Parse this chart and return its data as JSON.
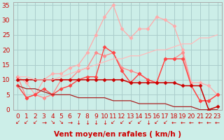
{
  "bg_color": "#cceee8",
  "grid_color": "#aacccc",
  "xlim": [
    -0.5,
    23.5
  ],
  "ylim": [
    0,
    36
  ],
  "yticks": [
    0,
    5,
    10,
    15,
    20,
    25,
    30,
    35
  ],
  "xlabel": "Vent moyen/en rafales ( km/h )",
  "series": [
    {
      "color": "#ffaaaa",
      "lw": 0.9,
      "marker": "D",
      "ms": 2.5,
      "y": [
        11,
        9,
        5,
        10,
        12,
        12,
        14,
        15,
        19,
        25,
        31,
        35,
        27,
        24,
        27,
        27,
        31,
        30,
        28,
        20,
        9,
        9,
        8,
        5
      ]
    },
    {
      "color": "#ff8888",
      "lw": 0.9,
      "marker": "D",
      "ms": 2.5,
      "y": [
        11,
        4,
        5,
        4,
        5,
        10,
        10,
        13,
        14,
        19,
        18,
        19,
        14,
        13,
        12,
        10,
        9,
        17,
        17,
        19,
        8,
        3,
        3,
        5
      ]
    },
    {
      "color": "#ff4444",
      "lw": 1.0,
      "marker": "D",
      "ms": 2.5,
      "y": [
        8,
        4,
        5,
        7,
        5,
        7,
        8,
        10,
        11,
        11,
        21,
        19,
        13,
        9,
        12,
        10,
        9,
        17,
        17,
        17,
        8,
        3,
        3,
        5
      ]
    },
    {
      "color": "#cc0000",
      "lw": 1.1,
      "marker": "D",
      "ms": 2.5,
      "y": [
        10,
        10,
        10,
        10,
        10,
        10,
        10,
        10,
        10,
        10,
        10,
        10,
        10,
        9,
        9,
        9,
        9,
        9,
        9,
        8,
        8,
        8,
        0,
        1
      ]
    },
    {
      "color": "#ffbbbb",
      "lw": 0.9,
      "marker": null,
      "ms": 0,
      "y": [
        11,
        11,
        10,
        10,
        10,
        11,
        12,
        13,
        14,
        15,
        16,
        17,
        17,
        18,
        18,
        19,
        20,
        20,
        21,
        22,
        22,
        24,
        24,
        25
      ]
    },
    {
      "color": "#aa2222",
      "lw": 0.9,
      "marker": null,
      "ms": 0,
      "y": [
        8,
        7,
        7,
        6,
        5,
        5,
        5,
        4,
        4,
        4,
        4,
        3,
        3,
        3,
        2,
        2,
        2,
        2,
        1,
        1,
        1,
        0,
        0,
        0
      ]
    }
  ],
  "wind_arrows": [
    "↙",
    "↙",
    "↙",
    "→",
    "↘",
    "↘",
    "→",
    "↓",
    "↓",
    "↓",
    "↓",
    "↙",
    "↙",
    "↙",
    "↙",
    "↓",
    "↙",
    "↙",
    "←",
    "←",
    "←",
    "←",
    "←",
    "←"
  ],
  "tick_color": "#cc0000",
  "tick_fontsize": 6.5,
  "arrow_fontsize": 6,
  "xlabel_fontsize": 7.5,
  "xlabel_color": "#cc0000"
}
